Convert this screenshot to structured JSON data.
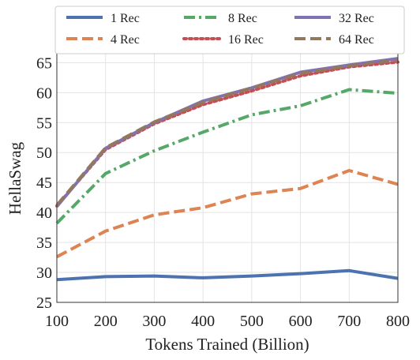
{
  "chart_data": {
    "type": "line",
    "title": "",
    "xlabel": "Tokens Trained (Billion)",
    "ylabel": "HellaSwag",
    "x": [
      100,
      200,
      300,
      400,
      500,
      600,
      700,
      800
    ],
    "xlim": [
      100,
      800
    ],
    "ylim": [
      25,
      66.5
    ],
    "xticks": [
      100,
      200,
      300,
      400,
      500,
      600,
      700,
      800
    ],
    "yticks": [
      25,
      30,
      35,
      40,
      45,
      50,
      55,
      60,
      65
    ],
    "grid": true,
    "legend_position": "top",
    "series": [
      {
        "name": "1 Rec",
        "color": "#4c72b0",
        "style": "solid",
        "values": [
          28.8,
          29.3,
          29.4,
          29.1,
          29.4,
          29.8,
          30.3,
          29.0
        ]
      },
      {
        "name": "4 Rec",
        "color": "#dd8452",
        "style": "dashed",
        "values": [
          32.6,
          36.9,
          39.6,
          40.8,
          43.1,
          44.0,
          47.0,
          44.7
        ]
      },
      {
        "name": "8 Rec",
        "color": "#55a868",
        "style": "dashdot",
        "values": [
          38.2,
          46.5,
          50.3,
          53.4,
          56.3,
          57.8,
          60.5,
          59.9
        ]
      },
      {
        "name": "16 Rec",
        "color": "#c44e52",
        "style": "dotted",
        "values": [
          41.1,
          50.5,
          54.8,
          58.0,
          60.3,
          62.8,
          64.3,
          65.1
        ]
      },
      {
        "name": "32 Rec",
        "color": "#8172b3",
        "style": "solid",
        "values": [
          41.0,
          50.7,
          55.0,
          58.6,
          60.8,
          63.4,
          64.6,
          65.7
        ]
      },
      {
        "name": "64 Rec",
        "color": "#937860",
        "style": "dashed",
        "values": [
          41.2,
          50.8,
          55.1,
          58.4,
          60.8,
          63.2,
          64.5,
          65.4
        ]
      }
    ]
  }
}
